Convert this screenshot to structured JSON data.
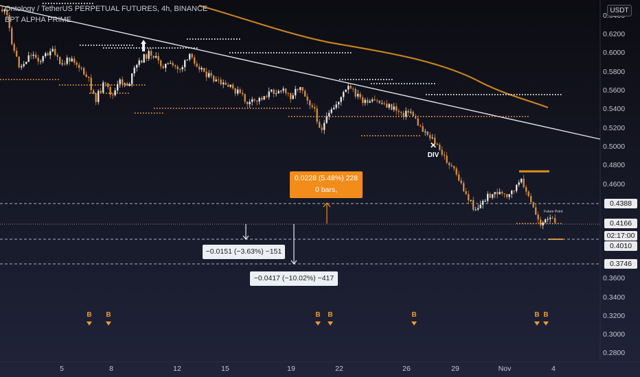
{
  "header": {
    "title": "Ontology / TetherUS PERPETUAL FUTURES, 4h, BINANCE",
    "indicator": "BPT ALPHA PRIME",
    "currency_button": "USDT"
  },
  "price_axis": {
    "ticks": [
      "0.6400",
      "0.6200",
      "0.6000",
      "0.5800",
      "0.5600",
      "0.5400",
      "0.5200",
      "0.5000",
      "0.4800",
      "0.4600",
      "0.3600",
      "0.3400",
      "0.3200",
      "0.3000",
      "0.2800"
    ]
  },
  "price_labels": {
    "upper_level": "0.4388",
    "current_price": "0.4166",
    "countdown": "02:17:00",
    "support": "0.4010",
    "lower_level": "0.3746"
  },
  "time_axis": {
    "ticks": [
      "5",
      "8",
      "12",
      "15",
      "19",
      "22",
      "26",
      "29",
      "Nov",
      "4"
    ]
  },
  "measures": {
    "up_line1": "0.0228 (5.48%) 228",
    "up_line2": "0 bars,",
    "down_short": "−0.0151 (−3.63%) −151",
    "down_long": "−0.0417 (−10.02%) −417"
  },
  "signals": {
    "b_label": "B",
    "div_label": "DIV",
    "div_mark": "✕",
    "future_label": "Future Point"
  },
  "colors": {
    "background": "#0c0c14",
    "bull": "#e2e2e2",
    "bear": "#d28a3e",
    "accent": "#f28c1a"
  }
}
